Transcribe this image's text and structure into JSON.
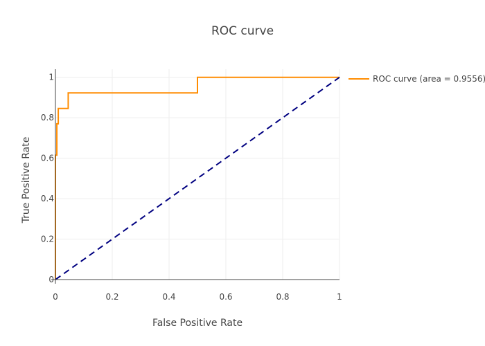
{
  "chart_data": {
    "type": "line",
    "title": "ROC curve",
    "xlabel": "False Positive Rate",
    "ylabel": "True Positive Rate",
    "xlim": [
      0,
      1
    ],
    "ylim": [
      0,
      1.04
    ],
    "x_ticks": [
      0,
      0.2,
      0.4,
      0.6,
      0.8,
      1
    ],
    "x_tick_labels": [
      "0",
      "0.2",
      "0.4",
      "0.6",
      "0.8",
      "1"
    ],
    "y_ticks": [
      0,
      0.2,
      0.4,
      0.6,
      0.8,
      1
    ],
    "y_tick_labels": [
      "0",
      "0.2",
      "0.4",
      "0.6",
      "0.8",
      "1"
    ],
    "grid": true,
    "legend_position": "top-right, outside plot",
    "series": [
      {
        "name": "ROC curve (area = 0.9556)",
        "color": "#ff8c00",
        "line_style": "solid",
        "x": [
          0,
          0,
          0.005,
          0.005,
          0.01,
          0.01,
          0.045,
          0.045,
          0.5,
          0.5,
          1
        ],
        "y": [
          0,
          0.615,
          0.615,
          0.77,
          0.77,
          0.846,
          0.846,
          0.923,
          0.923,
          1,
          1
        ]
      },
      {
        "name": "",
        "color": "#000080",
        "line_style": "dashed",
        "x": [
          0,
          1
        ],
        "y": [
          0,
          1
        ]
      }
    ]
  }
}
